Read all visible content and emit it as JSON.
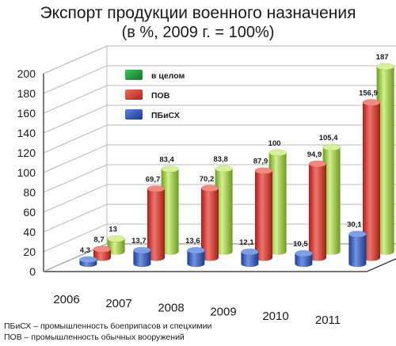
{
  "chart_data": {
    "type": "bar",
    "title": "Экспорт продукции военного назначения",
    "subtitle": "(в %, 2009 г. = 100%)",
    "categories": [
      "2006",
      "2007",
      "2008",
      "2009",
      "2010",
      "2011"
    ],
    "ylim": [
      0,
      200
    ],
    "yticks": [
      "0",
      "20",
      "40",
      "60",
      "80",
      "100",
      "120",
      "140",
      "160",
      "180",
      "200"
    ],
    "legend_position": "top-left",
    "series": [
      {
        "name": "ПБиСХ",
        "color": "#3a62c4",
        "values": [
          4.3,
          13.7,
          13.6,
          12.1,
          10.5,
          30.1
        ],
        "labels": [
          "4,3",
          "13,7",
          "13,6",
          "12,1",
          "10,5",
          "30,1"
        ]
      },
      {
        "name": "ПОВ",
        "color": "#d9342b",
        "values": [
          8.7,
          69.7,
          70.2,
          87.9,
          94.9,
          156.9
        ],
        "labels": [
          "8,7",
          "69,7",
          "70,2",
          "87,9",
          "94,9",
          "156,9"
        ]
      },
      {
        "name": "в целом",
        "color": "#8ec63f",
        "values": [
          13,
          83.4,
          83.8,
          100,
          105.4,
          187
        ],
        "labels": [
          "13",
          "83,4",
          "83,8",
          "100",
          "105,4",
          "187"
        ]
      }
    ],
    "legend": [
      {
        "label": "в целом",
        "color": "#1e9a3c"
      },
      {
        "label": "ПОВ",
        "color": "#d9342b"
      },
      {
        "label": "ПБиСХ",
        "color": "#2a4fb8"
      }
    ],
    "notes": [
      "ПБиСХ – промышленность боеприпасов и спецхимии",
      "ПОВ – промышленность обычных вооружений"
    ]
  }
}
